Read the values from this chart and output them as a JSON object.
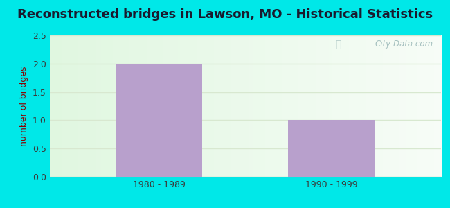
{
  "title": "Reconstructed bridges in Lawson, MO - Historical Statistics",
  "categories": [
    "1980 - 1989",
    "1990 - 1999"
  ],
  "values": [
    2,
    1
  ],
  "bar_color": "#b8a0cc",
  "ylabel": "number of bridges",
  "ylim": [
    0,
    2.5
  ],
  "yticks": [
    0,
    0.5,
    1,
    1.5,
    2,
    2.5
  ],
  "outer_background": "#00e8e8",
  "title_color": "#1a1a2e",
  "axis_label_color": "#8b0000",
  "tick_label_color": "#3a3a3a",
  "watermark_text": "City-Data.com",
  "watermark_color": "#9ab8b8",
  "grid_color": "#d8e8d0",
  "title_fontsize": 13,
  "bar_positions": [
    0.28,
    0.72
  ],
  "bar_width": 0.22
}
